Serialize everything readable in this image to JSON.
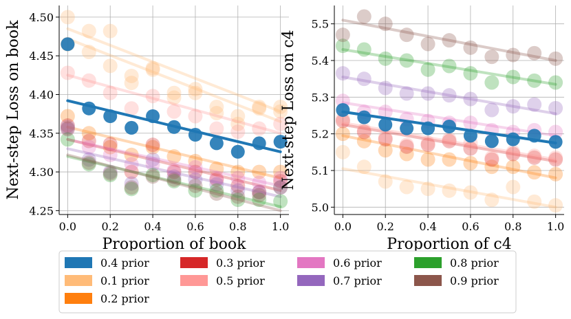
{
  "chart_data": [
    {
      "type": "scatter",
      "id": "book",
      "xlabel": "Proportion of book",
      "ylabel": "Next-step Loss on book",
      "xlim": [
        -0.04,
        1.04
      ],
      "ylim": [
        4.245,
        4.515
      ],
      "xticks": [
        "0.0",
        "0.2",
        "0.4",
        "0.6",
        "0.8",
        "1.0"
      ],
      "xtick_values": [
        0,
        0.2,
        0.4,
        0.6,
        0.8,
        1.0
      ],
      "yticks": [
        "4.25",
        "4.30",
        "4.35",
        "4.40",
        "4.45",
        "4.50"
      ],
      "ytick_values": [
        4.25,
        4.3,
        4.35,
        4.4,
        4.45,
        4.5
      ],
      "grid": true,
      "x": [
        0,
        0.1,
        0.2,
        0.3,
        0.4,
        0.5,
        0.6,
        0.7,
        0.8,
        0.9,
        1.0
      ],
      "series": [
        {
          "name": "0.1 prior",
          "color": "#ffbb78",
          "values": [
            4.5,
            4.482,
            4.482,
            4.424,
            4.434,
            4.402,
            4.402,
            4.384,
            4.362,
            4.384,
            4.384
          ],
          "trend": [
            4.485,
            4.378
          ]
        },
        {
          "name": "0.1 prior",
          "color": "#ffbb78",
          "values": [
            4.465,
            4.455,
            4.437,
            4.415,
            4.432,
            4.396,
            4.407,
            4.376,
            4.372,
            4.382,
            4.378
          ],
          "trend": [
            4.472,
            4.365
          ]
        },
        {
          "name": "0.2 prior",
          "color": "#ff7f0e",
          "values": [
            4.372,
            4.35,
            4.332,
            4.322,
            4.332,
            4.32,
            4.314,
            4.304,
            4.3,
            4.3,
            4.3
          ],
          "trend": [
            4.358,
            4.292
          ]
        },
        {
          "name": "0.3 prior",
          "color": "#d62728",
          "values": [
            4.36,
            4.34,
            4.336,
            4.3,
            4.335,
            4.3,
            4.3,
            4.29,
            4.282,
            4.274,
            4.288
          ],
          "trend": [
            4.342,
            4.276
          ]
        },
        {
          "name": "0.5 prior",
          "color": "#ff9896",
          "values": [
            4.428,
            4.418,
            4.402,
            4.382,
            4.398,
            4.378,
            4.372,
            4.356,
            4.352,
            4.356,
            4.362
          ],
          "trend": [
            4.425,
            4.35
          ]
        },
        {
          "name": "0.6 prior",
          "color": "#e377c2",
          "values": [
            4.355,
            4.332,
            4.322,
            4.31,
            4.31,
            4.302,
            4.306,
            4.292,
            4.292,
            4.286,
            4.292
          ],
          "trend": [
            4.342,
            4.282
          ]
        },
        {
          "name": "0.7 prior",
          "color": "#9467bd",
          "values": [
            4.358,
            4.316,
            4.3,
            4.285,
            4.316,
            4.294,
            4.29,
            4.284,
            4.276,
            4.274,
            4.28
          ],
          "trend": [
            4.33,
            4.268
          ]
        },
        {
          "name": "0.8 prior",
          "color": "#2ca02c",
          "values": [
            4.342,
            4.31,
            4.296,
            4.278,
            4.296,
            4.288,
            4.276,
            4.276,
            4.264,
            4.264,
            4.262
          ],
          "trend": [
            4.32,
            4.255
          ]
        },
        {
          "name": "0.9 prior",
          "color": "#8c564b",
          "values": [
            4.356,
            4.312,
            4.298,
            4.28,
            4.294,
            4.29,
            4.282,
            4.272,
            4.268,
            4.27,
            4.28
          ],
          "trend": [
            4.322,
            4.25
          ]
        },
        {
          "name": "0.4 prior",
          "color": "#1f77b4",
          "highlight": true,
          "values": [
            4.465,
            4.382,
            4.372,
            4.357,
            4.372,
            4.358,
            4.348,
            4.337,
            4.326,
            4.337,
            4.339
          ],
          "trend": [
            4.392,
            4.326
          ]
        }
      ]
    },
    {
      "type": "scatter",
      "id": "c4",
      "xlabel": "Proportion of c4",
      "ylabel": "Next-step Loss on c4",
      "xlim": [
        -0.04,
        1.04
      ],
      "ylim": [
        4.98,
        5.55
      ],
      "xticks": [
        "0.0",
        "0.2",
        "0.4",
        "0.6",
        "0.8",
        "1.0"
      ],
      "xtick_values": [
        0,
        0.2,
        0.4,
        0.6,
        0.8,
        1.0
      ],
      "yticks": [
        "5.0",
        "5.1",
        "5.2",
        "5.3",
        "5.4",
        "5.5"
      ],
      "ytick_values": [
        5.0,
        5.1,
        5.2,
        5.3,
        5.4,
        5.5
      ],
      "grid": true,
      "x": [
        0,
        0.1,
        0.2,
        0.3,
        0.4,
        0.5,
        0.6,
        0.7,
        0.8,
        0.9,
        1.0
      ],
      "series": [
        {
          "name": "0.1 prior",
          "color": "#ffbb78",
          "values": [
            5.15,
            5.11,
            5.07,
            5.055,
            5.05,
            5.045,
            5.04,
            5.02,
            5.055,
            5.015,
            5.005
          ],
          "trend": [
            5.105,
            5.0
          ]
        },
        {
          "name": "0.2 prior",
          "color": "#ff7f0e",
          "values": [
            5.2,
            5.18,
            5.155,
            5.145,
            5.13,
            5.13,
            5.12,
            5.11,
            5.11,
            5.095,
            5.09
          ],
          "trend": [
            5.195,
            5.08
          ]
        },
        {
          "name": "0.3 prior",
          "color": "#d62728",
          "values": [
            5.235,
            5.205,
            5.185,
            5.165,
            5.17,
            5.18,
            5.16,
            5.13,
            5.145,
            5.135,
            5.13
          ],
          "trend": [
            5.225,
            5.125
          ]
        },
        {
          "name": "0.5 prior",
          "color": "#ff9896",
          "values": [
            5.24,
            5.21,
            5.19,
            5.17,
            5.175,
            5.185,
            5.175,
            5.135,
            5.15,
            5.14,
            5.135
          ],
          "trend": [
            5.23,
            5.13
          ]
        },
        {
          "name": "0.6 prior",
          "color": "#e377c2",
          "values": [
            5.29,
            5.26,
            5.26,
            5.24,
            5.235,
            5.23,
            5.23,
            5.21,
            5.205,
            5.21,
            5.205
          ],
          "trend": [
            5.285,
            5.195
          ]
        },
        {
          "name": "0.7 prior",
          "color": "#9467bd",
          "values": [
            5.365,
            5.35,
            5.325,
            5.31,
            5.31,
            5.305,
            5.295,
            5.265,
            5.275,
            5.28,
            5.27
          ],
          "trend": [
            5.355,
            5.255
          ]
        },
        {
          "name": "0.8 prior",
          "color": "#2ca02c",
          "values": [
            5.44,
            5.43,
            5.405,
            5.4,
            5.375,
            5.385,
            5.365,
            5.34,
            5.355,
            5.345,
            5.34
          ],
          "trend": [
            5.43,
            5.335
          ]
        },
        {
          "name": "0.9 prior",
          "color": "#8c564b",
          "values": [
            5.47,
            5.52,
            5.5,
            5.47,
            5.445,
            5.455,
            5.435,
            5.41,
            5.415,
            5.42,
            5.405
          ],
          "trend": [
            5.51,
            5.4
          ]
        },
        {
          "name": "0.4 prior",
          "color": "#1f77b4",
          "highlight": true,
          "values": [
            5.265,
            5.245,
            5.225,
            5.215,
            5.215,
            5.22,
            5.195,
            5.18,
            5.185,
            5.195,
            5.178
          ],
          "trend": [
            5.26,
            5.175
          ]
        }
      ]
    }
  ],
  "legend": {
    "entries": [
      {
        "label": "0.4 prior",
        "color": "#1f77b4"
      },
      {
        "label": "0.1 prior",
        "color": "#ffbb78"
      },
      {
        "label": "0.2 prior",
        "color": "#ff7f0e"
      },
      {
        "label": "0.3 prior",
        "color": "#d62728"
      },
      {
        "label": "0.5 prior",
        "color": "#ff9896"
      },
      {
        "label": "0.6 prior",
        "color": "#e377c2"
      },
      {
        "label": "0.7 prior",
        "color": "#9467bd"
      },
      {
        "label": "0.8 prior",
        "color": "#2ca02c"
      },
      {
        "label": "0.9 prior",
        "color": "#8c564b"
      }
    ]
  }
}
